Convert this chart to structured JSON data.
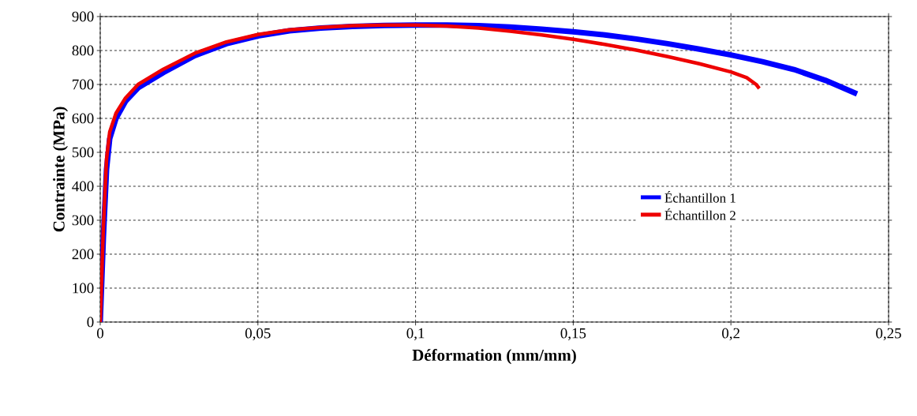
{
  "chart_data": {
    "type": "line",
    "xlabel": "Déformation (mm/mm)",
    "ylabel": "Contrainte (MPa)",
    "xlim": [
      0,
      0.25
    ],
    "ylim": [
      0,
      900
    ],
    "xticks": [
      {
        "value": 0,
        "label": "0"
      },
      {
        "value": 0.05,
        "label": "0,05"
      },
      {
        "value": 0.1,
        "label": "0,1"
      },
      {
        "value": 0.15,
        "label": "0,15"
      },
      {
        "value": 0.2,
        "label": "0,2"
      },
      {
        "value": 0.25,
        "label": "0,25"
      }
    ],
    "yticks": [
      0,
      100,
      200,
      300,
      400,
      500,
      600,
      700,
      800,
      900
    ],
    "grid": true,
    "legend": "right",
    "line_style": "solid",
    "marker": "none",
    "series": [
      {
        "name": "Échantillon 1",
        "color": "#0000ff",
        "x": [
          0,
          0.001,
          0.002,
          0.003,
          0.005,
          0.008,
          0.012,
          0.02,
          0.03,
          0.04,
          0.05,
          0.06,
          0.07,
          0.08,
          0.09,
          0.1,
          0.11,
          0.12,
          0.13,
          0.14,
          0.15,
          0.16,
          0.17,
          0.18,
          0.19,
          0.2,
          0.21,
          0.22,
          0.23,
          0.24
        ],
        "values": [
          0,
          250,
          450,
          540,
          600,
          650,
          690,
          735,
          785,
          820,
          843,
          858,
          866,
          871,
          874,
          875,
          875,
          873,
          869,
          863,
          855,
          846,
          834,
          820,
          804,
          787,
          767,
          744,
          712,
          672
        ]
      },
      {
        "name": "Échantillon 2",
        "color": "#ee0000",
        "x": [
          0,
          0.001,
          0.002,
          0.003,
          0.005,
          0.008,
          0.012,
          0.02,
          0.03,
          0.04,
          0.05,
          0.06,
          0.07,
          0.08,
          0.09,
          0.1,
          0.11,
          0.12,
          0.13,
          0.14,
          0.15,
          0.16,
          0.17,
          0.18,
          0.19,
          0.2,
          0.205,
          0.208,
          0.209
        ],
        "values": [
          0,
          280,
          480,
          560,
          615,
          660,
          700,
          745,
          792,
          825,
          847,
          861,
          868,
          873,
          875,
          875,
          872,
          866,
          857,
          846,
          833,
          818,
          801,
          782,
          761,
          737,
          720,
          700,
          688
        ]
      }
    ]
  }
}
